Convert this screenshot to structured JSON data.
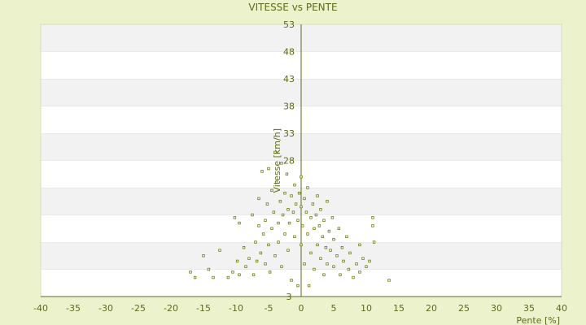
{
  "chart_data": {
    "type": "scatter",
    "title": "VITESSE vs PENTE",
    "xlabel": "Pente [%]",
    "ylabel": "Vitesse [km/h]",
    "xlim": [
      -40,
      40
    ],
    "ylim": [
      3,
      53
    ],
    "xticks": [
      -40,
      -35,
      -30,
      -25,
      -20,
      -15,
      -10,
      -5,
      0,
      5,
      10,
      15,
      20,
      25,
      30,
      35,
      40
    ],
    "yticks": [
      3,
      8,
      13,
      18,
      23,
      28,
      33,
      38,
      43,
      48,
      53
    ],
    "ytick_labels_shown": [
      3,
      28,
      33,
      38,
      43,
      48,
      53
    ],
    "grid": "alternating horizontal bands",
    "colors": {
      "background": "#ecf2cc",
      "plot_band_light": "#ffffff",
      "plot_band_dark": "#f2f2f2",
      "axis": "#5c6a1c",
      "marker": "#6b7a10"
    },
    "series": [
      {
        "points": [
          [
            -17,
            7.5
          ],
          [
            -16.3,
            6.5
          ],
          [
            -15,
            10.5
          ],
          [
            -14.2,
            8.0
          ],
          [
            -13.5,
            6.5
          ],
          [
            -12.5,
            11.5
          ],
          [
            -11.2,
            6.5
          ],
          [
            -10.5,
            7.5
          ],
          [
            -10.2,
            17.5
          ],
          [
            -9.8,
            9.5
          ],
          [
            -9.5,
            16.5
          ],
          [
            -9.5,
            7.0
          ],
          [
            -8.8,
            12.0
          ],
          [
            -8.5,
            8.5
          ],
          [
            -8.0,
            10.0
          ],
          [
            -7.5,
            18.0
          ],
          [
            -7.3,
            7.0
          ],
          [
            -7.0,
            13.0
          ],
          [
            -6.8,
            9.5
          ],
          [
            -6.5,
            16.0
          ],
          [
            -6.5,
            21.0
          ],
          [
            -6.2,
            11.0
          ],
          [
            -6.0,
            26.0
          ],
          [
            -5.8,
            14.5
          ],
          [
            -5.5,
            9.0
          ],
          [
            -5.5,
            17.0
          ],
          [
            -5.2,
            20.0
          ],
          [
            -5.0,
            26.5
          ],
          [
            -5.0,
            12.5
          ],
          [
            -4.8,
            7.5
          ],
          [
            -4.5,
            15.5
          ],
          [
            -4.5,
            22.5
          ],
          [
            -4.2,
            18.5
          ],
          [
            -4.0,
            29.5
          ],
          [
            -4.0,
            10.5
          ],
          [
            -3.8,
            24.0
          ],
          [
            -3.5,
            16.5
          ],
          [
            -3.5,
            13.0
          ],
          [
            -3.2,
            20.5
          ],
          [
            -3.0,
            27.5
          ],
          [
            -3.0,
            8.5
          ],
          [
            -2.8,
            18.0
          ],
          [
            -2.5,
            22.0
          ],
          [
            -2.5,
            14.5
          ],
          [
            -2.2,
            25.5
          ],
          [
            -2.0,
            19.0
          ],
          [
            -2.0,
            11.5
          ],
          [
            -1.8,
            16.5
          ],
          [
            -1.5,
            21.5
          ],
          [
            -1.5,
            6.0
          ],
          [
            -1.2,
            18.5
          ],
          [
            -1.0,
            23.5
          ],
          [
            -1.0,
            14.0
          ],
          [
            -0.8,
            20.0
          ],
          [
            -0.5,
            17.0
          ],
          [
            -0.5,
            5.0
          ],
          [
            -0.3,
            22.0
          ],
          [
            0.0,
            19.5
          ],
          [
            0.0,
            12.5
          ],
          [
            0.0,
            25.0
          ],
          [
            0.2,
            16.0
          ],
          [
            0.5,
            21.0
          ],
          [
            0.5,
            9.0
          ],
          [
            0.8,
            18.5
          ],
          [
            1.0,
            14.5
          ],
          [
            1.0,
            23.0
          ],
          [
            1.2,
            5.0
          ],
          [
            1.5,
            17.5
          ],
          [
            1.5,
            11.0
          ],
          [
            1.8,
            20.0
          ],
          [
            2.0,
            15.5
          ],
          [
            2.0,
            8.0
          ],
          [
            2.3,
            18.0
          ],
          [
            2.5,
            12.5
          ],
          [
            2.5,
            21.5
          ],
          [
            2.8,
            16.0
          ],
          [
            3.0,
            10.0
          ],
          [
            3.0,
            19.0
          ],
          [
            3.3,
            14.0
          ],
          [
            3.5,
            7.0
          ],
          [
            3.5,
            17.0
          ],
          [
            3.8,
            12.0
          ],
          [
            4.0,
            20.5
          ],
          [
            4.0,
            9.0
          ],
          [
            4.3,
            15.0
          ],
          [
            4.5,
            11.5
          ],
          [
            4.8,
            17.5
          ],
          [
            5.0,
            8.5
          ],
          [
            5.0,
            13.5
          ],
          [
            5.5,
            10.5
          ],
          [
            5.8,
            15.5
          ],
          [
            6.0,
            7.0
          ],
          [
            6.3,
            12.0
          ],
          [
            6.5,
            9.5
          ],
          [
            7.0,
            14.0
          ],
          [
            7.3,
            8.0
          ],
          [
            7.5,
            11.0
          ],
          [
            8.0,
            6.5
          ],
          [
            8.5,
            9.0
          ],
          [
            9.0,
            12.5
          ],
          [
            9.0,
            7.5
          ],
          [
            9.5,
            10.0
          ],
          [
            10.0,
            8.5
          ],
          [
            10.5,
            9.5
          ],
          [
            11.0,
            17.5
          ],
          [
            11.0,
            16.0
          ],
          [
            11.2,
            13.0
          ],
          [
            13.5,
            6.0
          ]
        ]
      }
    ]
  }
}
